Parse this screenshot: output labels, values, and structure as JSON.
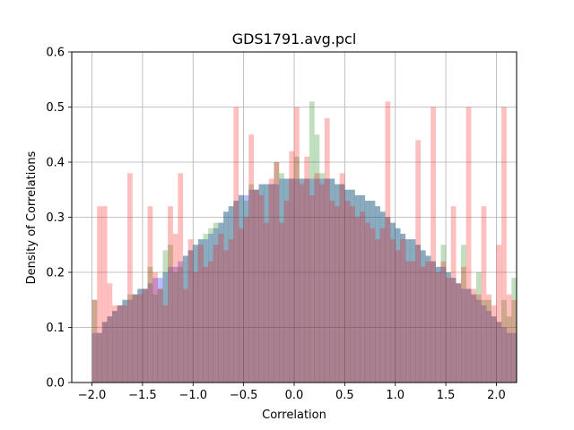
{
  "chart_data": {
    "type": "bar",
    "title": "GDS1791.avg.pcl",
    "xlabel": "Correlation",
    "ylabel": "Density of Correlations",
    "xlim": [
      -2.2,
      2.2
    ],
    "ylim": [
      0,
      0.6
    ],
    "xticks": [
      -2.0,
      -1.5,
      -1.0,
      -0.5,
      0.0,
      0.5,
      1.0,
      1.5,
      2.0
    ],
    "xtick_labels": [
      "−2.0",
      "−1.5",
      "−1.0",
      "−0.5",
      "0.0",
      "0.5",
      "1.0",
      "1.5",
      "2.0"
    ],
    "yticks": [
      0.0,
      0.1,
      0.2,
      0.3,
      0.4,
      0.5,
      0.6
    ],
    "ytick_labels": [
      "0.0",
      "0.1",
      "0.2",
      "0.3",
      "0.4",
      "0.5",
      "0.6"
    ],
    "grid": true,
    "bin_start": -2.0,
    "bin_width": 0.05,
    "series": [
      {
        "color": "#0000ff",
        "opacity": 0.27,
        "values": [
          0.09,
          0.09,
          0.11,
          0.12,
          0.13,
          0.14,
          0.15,
          0.15,
          0.16,
          0.17,
          0.17,
          0.18,
          0.19,
          0.19,
          0.2,
          0.21,
          0.21,
          0.22,
          0.23,
          0.24,
          0.25,
          0.26,
          0.26,
          0.27,
          0.28,
          0.29,
          0.31,
          0.32,
          0.33,
          0.34,
          0.34,
          0.35,
          0.35,
          0.36,
          0.36,
          0.36,
          0.36,
          0.37,
          0.37,
          0.37,
          0.37,
          0.37,
          0.37,
          0.37,
          0.37,
          0.37,
          0.37,
          0.37,
          0.36,
          0.36,
          0.35,
          0.35,
          0.34,
          0.34,
          0.33,
          0.33,
          0.32,
          0.31,
          0.3,
          0.29,
          0.28,
          0.27,
          0.26,
          0.26,
          0.25,
          0.24,
          0.23,
          0.22,
          0.21,
          0.21,
          0.2,
          0.19,
          0.18,
          0.17,
          0.17,
          0.16,
          0.15,
          0.14,
          0.13,
          0.12,
          0.11,
          0.1,
          0.09,
          0.09
        ]
      },
      {
        "color": "#008000",
        "opacity": 0.25,
        "values": [
          0.15,
          0.09,
          0.11,
          0.12,
          0.13,
          0.14,
          0.15,
          0.16,
          0.16,
          0.17,
          0.17,
          0.21,
          0.16,
          0.17,
          0.24,
          0.25,
          0.2,
          0.21,
          0.23,
          0.24,
          0.25,
          0.26,
          0.27,
          0.28,
          0.29,
          0.29,
          0.31,
          0.32,
          0.33,
          0.34,
          0.33,
          0.36,
          0.35,
          0.36,
          0.36,
          0.36,
          0.4,
          0.38,
          0.37,
          0.37,
          0.41,
          0.37,
          0.37,
          0.51,
          0.45,
          0.38,
          0.37,
          0.37,
          0.36,
          0.36,
          0.35,
          0.35,
          0.34,
          0.34,
          0.33,
          0.33,
          0.32,
          0.31,
          0.3,
          0.29,
          0.28,
          0.27,
          0.26,
          0.26,
          0.25,
          0.24,
          0.23,
          0.22,
          0.21,
          0.25,
          0.2,
          0.19,
          0.18,
          0.25,
          0.17,
          0.16,
          0.2,
          0.15,
          0.15,
          0.12,
          0.11,
          0.15,
          0.12,
          0.19
        ]
      },
      {
        "color": "#ff0000",
        "opacity": 0.25,
        "values": [
          0.15,
          0.32,
          0.32,
          0.18,
          0.14,
          0.14,
          0.14,
          0.38,
          0.16,
          0.16,
          0.17,
          0.32,
          0.2,
          0.17,
          0.14,
          0.32,
          0.27,
          0.38,
          0.17,
          0.26,
          0.2,
          0.25,
          0.21,
          0.22,
          0.25,
          0.27,
          0.24,
          0.26,
          0.5,
          0.28,
          0.3,
          0.45,
          0.35,
          0.34,
          0.29,
          0.37,
          0.4,
          0.29,
          0.33,
          0.42,
          0.5,
          0.36,
          0.41,
          0.34,
          0.38,
          0.36,
          0.48,
          0.33,
          0.32,
          0.38,
          0.33,
          0.32,
          0.3,
          0.31,
          0.29,
          0.28,
          0.26,
          0.28,
          0.51,
          0.26,
          0.24,
          0.26,
          0.22,
          0.22,
          0.44,
          0.21,
          0.22,
          0.5,
          0.2,
          0.22,
          0.19,
          0.32,
          0.18,
          0.21,
          0.5,
          0.17,
          0.16,
          0.32,
          0.16,
          0.14,
          0.25,
          0.5,
          0.16,
          0.15
        ]
      }
    ]
  }
}
